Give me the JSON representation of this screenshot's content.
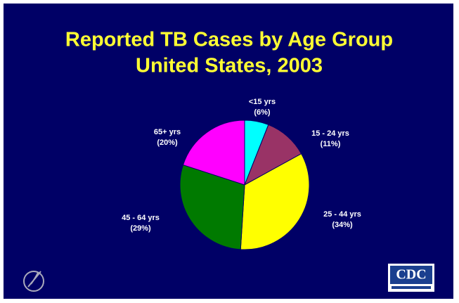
{
  "chart_data": {
    "type": "pie",
    "title": "Reported TB Cases by Age Group",
    "subtitle": "United States, 2003",
    "categories": [
      "<15 yrs",
      "15 - 24 yrs",
      "25 - 44 yrs",
      "45 - 64 yrs",
      "65+ yrs"
    ],
    "values": [
      6,
      11,
      34,
      29,
      20
    ],
    "value_labels": [
      "(6%)",
      "(11%)",
      "(34%)",
      "(29%)",
      "(20%)"
    ],
    "colors": [
      "#00ffff",
      "#993366",
      "#ffff00",
      "#007a00",
      "#ff00ff"
    ],
    "logo": "CDC"
  }
}
